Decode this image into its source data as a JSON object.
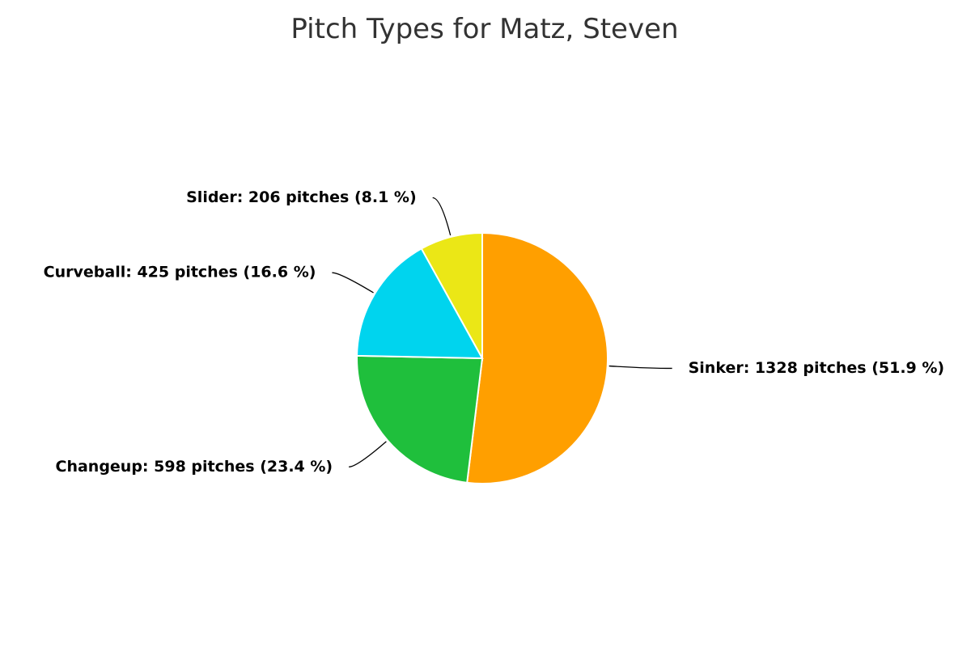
{
  "chart_data": {
    "type": "pie",
    "title": "Pitch Types for Matz, Steven",
    "categories": [
      "Sinker",
      "Changeup",
      "Curveball",
      "Slider"
    ],
    "values": [
      1328,
      598,
      425,
      206
    ],
    "value_labels": [
      "Sinker: 1328 pitches (51.9 %)",
      "Changeup: 598 pitches (23.4 %)",
      "Curveball: 425 pitches (16.6 %)",
      "Slider: 206 pitches (8.1 %)"
    ],
    "colors": [
      "#ff9f00",
      "#1fbf3c",
      "#00d4ee",
      "#ebe716"
    ]
  }
}
